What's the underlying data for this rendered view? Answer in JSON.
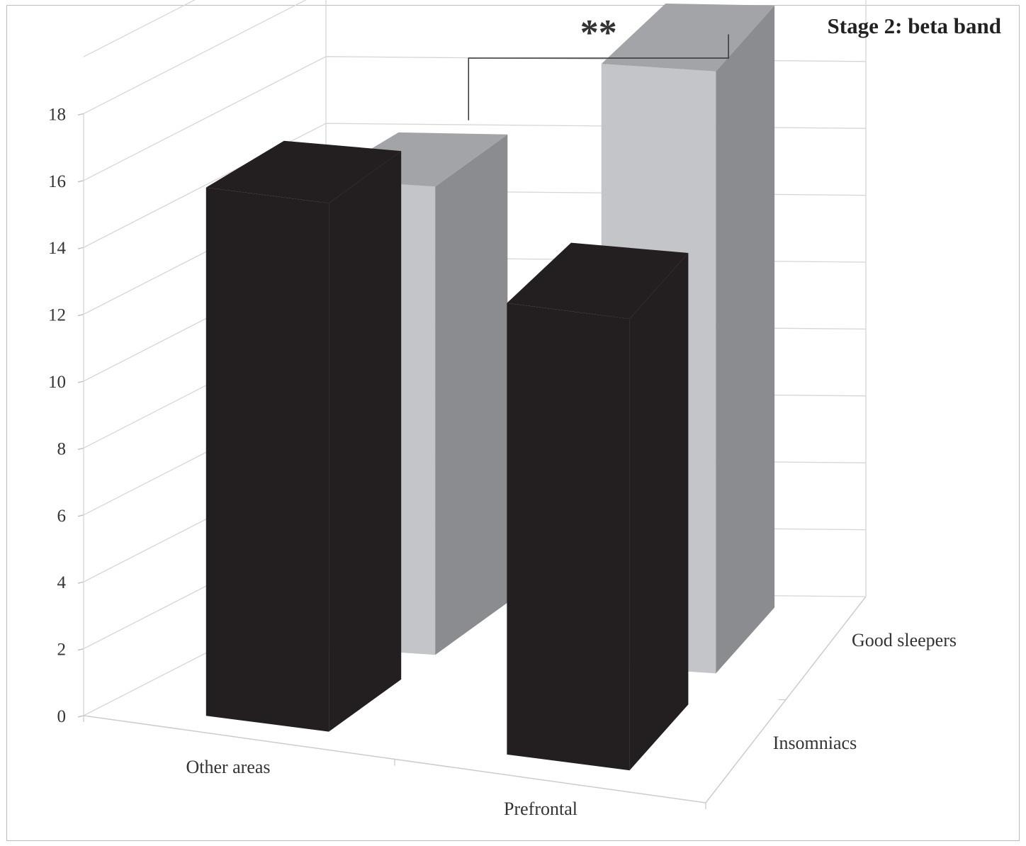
{
  "chart_data": {
    "type": "bar",
    "subtype": "3d-clustered",
    "title": "Stage 2: beta band",
    "xlabel": "",
    "ylabel": "",
    "categories": [
      "Other areas",
      "Prefrontal"
    ],
    "series": [
      {
        "name": "Insomniacs",
        "values": [
          15.8,
          13.5
        ],
        "color": "#231f20"
      },
      {
        "name": "Good sleepers",
        "values": [
          14.0,
          18.0
        ],
        "color": "#c4c5c8"
      }
    ],
    "ylim": [
      0,
      18
    ],
    "yticks": [
      "0",
      "2",
      "4",
      "6",
      "8",
      "10",
      "12",
      "14",
      "16",
      "18"
    ],
    "grid": true,
    "legend": "none",
    "annotation": {
      "text": "**",
      "between": [
        "Good sleepers / Other areas",
        "Good sleepers / Prefrontal"
      ]
    }
  }
}
